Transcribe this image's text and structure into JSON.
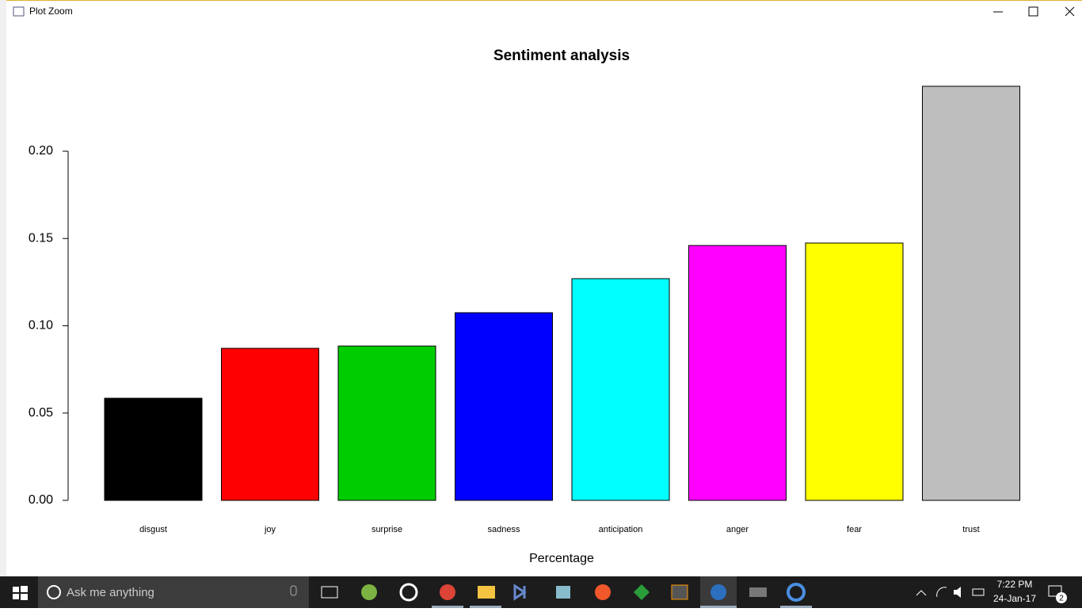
{
  "window": {
    "title": "Plot Zoom"
  },
  "chart_data": {
    "type": "bar",
    "title": "Sentiment analysis",
    "x_label": "Percentage",
    "categories": [
      "disgust",
      "joy",
      "surprise",
      "sadness",
      "anticipation",
      "anger",
      "fear",
      "trust"
    ],
    "values": [
      0.0585,
      0.0871,
      0.0884,
      0.1075,
      0.127,
      0.146,
      0.1474,
      0.2372
    ],
    "colors": [
      "#000000",
      "#ff0000",
      "#00cd00",
      "#0000ff",
      "#00ffff",
      "#ff00ff",
      "#ffff00",
      "#bebebe"
    ],
    "ylim": [
      0,
      0.25
    ],
    "yticks": [
      {
        "value": 0,
        "label": "0.00"
      },
      {
        "value": 0.05,
        "label": "0.05"
      },
      {
        "value": 0.1,
        "label": "0.10"
      },
      {
        "value": 0.15,
        "label": "0.15"
      },
      {
        "value": 0.2,
        "label": "0.20"
      }
    ]
  },
  "taskbar": {
    "search": "Ask me anything",
    "time": "7:22 PM",
    "date": "24-Jan-17",
    "notifications": "2"
  }
}
